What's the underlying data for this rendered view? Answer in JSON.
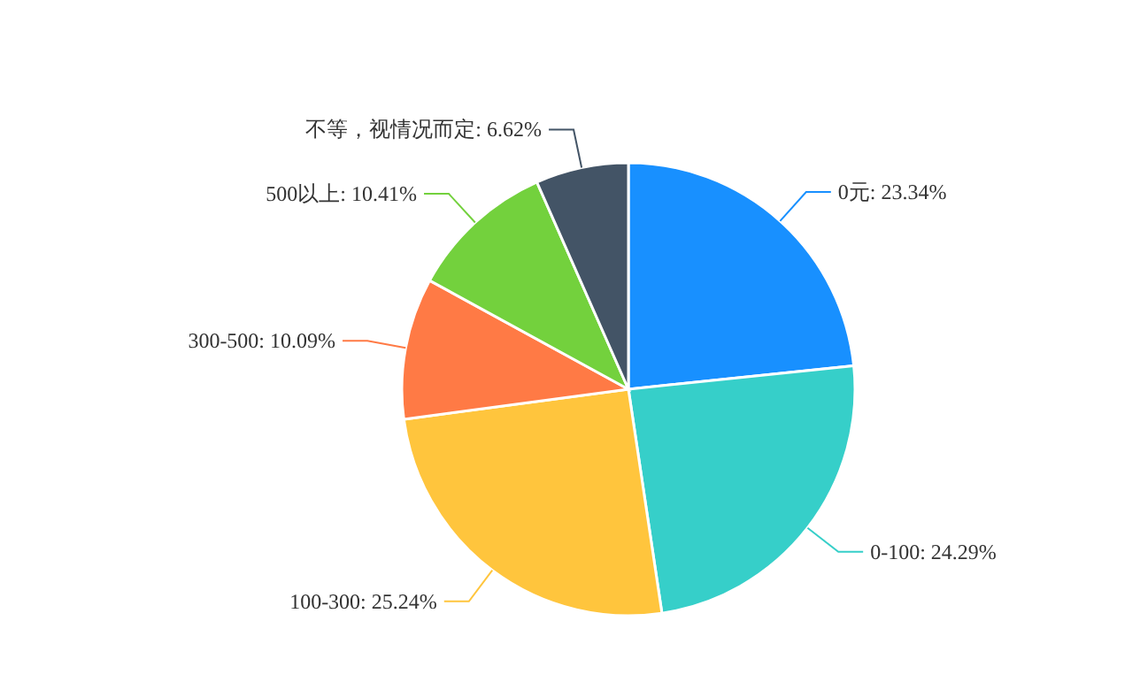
{
  "chart_data": {
    "type": "pie",
    "categories": [
      "0元: 23.34%",
      "0-100: 24.29%",
      "100-300: 25.24%",
      "300-500: 10.09%",
      "500以上: 10.41%",
      "不等，视情况而定: 6.62%"
    ],
    "values": [
      23.34,
      24.29,
      25.24,
      10.09,
      10.41,
      6.62
    ],
    "colors": [
      "#1890ff",
      "#36cfc9",
      "#ffc53d",
      "#ff7a45",
      "#73d13d",
      "#435466"
    ]
  }
}
